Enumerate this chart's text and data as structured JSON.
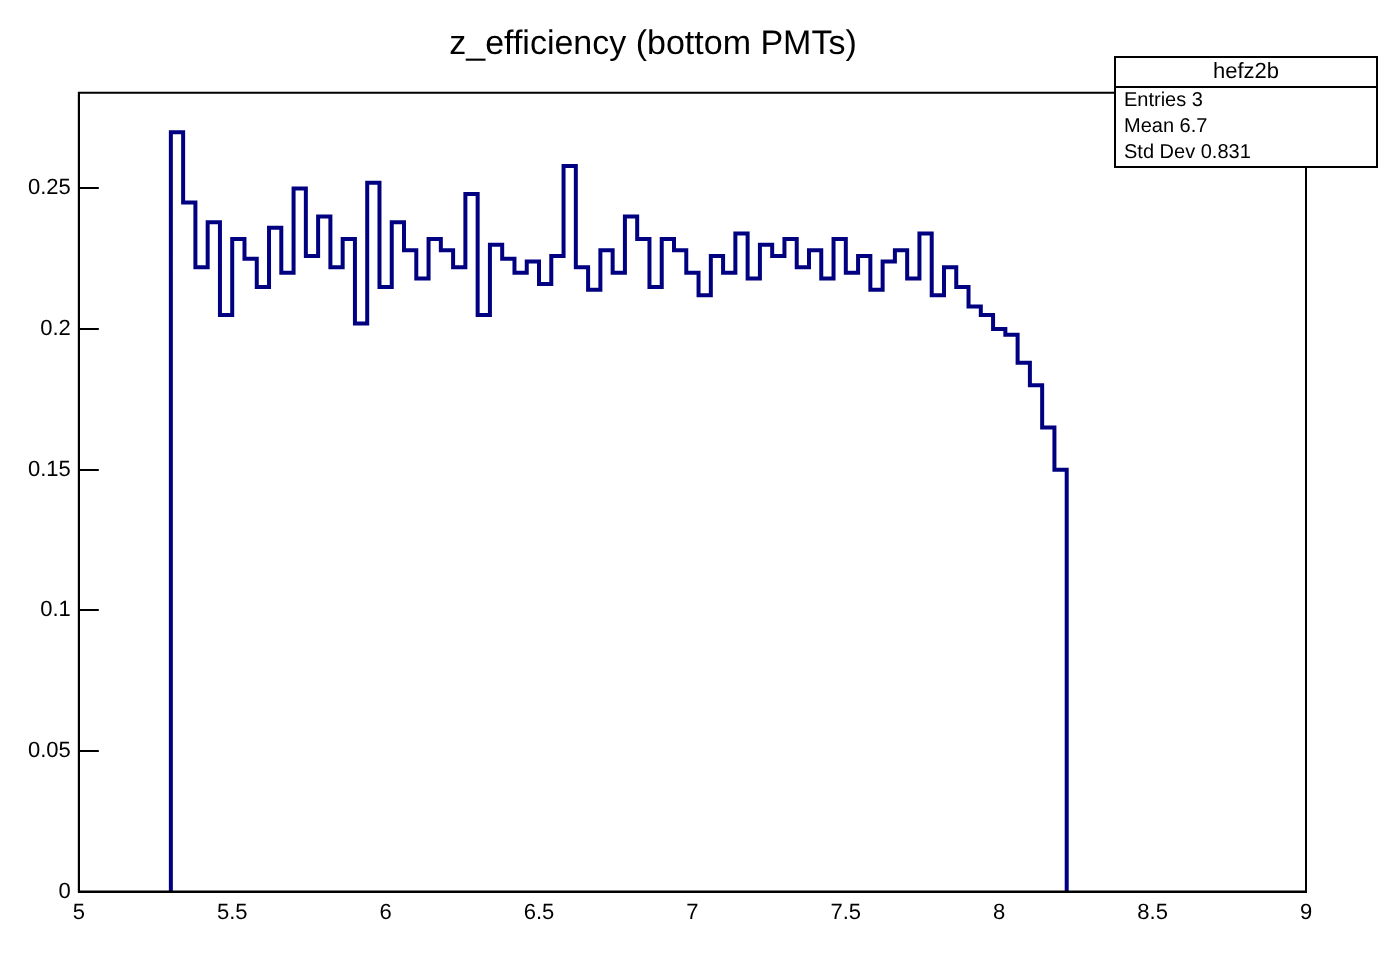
{
  "chart_data": {
    "type": "histogram",
    "title": "z_efficiency (bottom PMTs)",
    "annotations": [
      "hefz2b",
      "Entries 3",
      "Mean 6.7",
      "Std Dev 0.831"
    ],
    "bins": [
      5.3,
      5.34,
      5.38,
      5.42,
      5.46,
      5.5,
      5.54,
      5.58,
      5.62,
      5.66,
      5.7,
      5.74,
      5.78,
      5.82,
      5.86,
      5.9,
      5.94,
      5.98,
      6.02,
      6.06,
      6.1,
      6.14,
      6.18,
      6.22,
      6.26,
      6.3,
      6.34,
      6.38,
      6.42,
      6.46,
      6.5,
      6.54,
      6.58,
      6.62,
      6.66,
      6.7,
      6.74,
      6.78,
      6.82,
      6.86,
      6.9,
      6.94,
      6.98,
      7.02,
      7.06,
      7.1,
      7.14,
      7.18,
      7.22,
      7.26,
      7.3,
      7.34,
      7.38,
      7.42,
      7.46,
      7.5,
      7.54,
      7.58,
      7.62,
      7.66,
      7.7,
      7.74,
      7.78,
      7.82,
      7.86,
      7.9,
      7.94,
      7.98,
      8.02,
      8.06,
      8.1,
      8.14,
      8.18,
      8.22
    ],
    "values": [
      0.27,
      0.245,
      0.222,
      0.238,
      0.205,
      0.232,
      0.225,
      0.215,
      0.236,
      0.22,
      0.25,
      0.226,
      0.24,
      0.222,
      0.232,
      0.202,
      0.252,
      0.215,
      0.238,
      0.228,
      0.218,
      0.232,
      0.228,
      0.222,
      0.248,
      0.205,
      0.23,
      0.225,
      0.22,
      0.224,
      0.216,
      0.226,
      0.258,
      0.222,
      0.214,
      0.228,
      0.22,
      0.24,
      0.232,
      0.215,
      0.232,
      0.228,
      0.22,
      0.212,
      0.226,
      0.22,
      0.234,
      0.218,
      0.23,
      0.226,
      0.232,
      0.222,
      0.228,
      0.218,
      0.232,
      0.22,
      0.226,
      0.214,
      0.224,
      0.228,
      0.218,
      0.234,
      0.212,
      0.222,
      0.215,
      0.208,
      0.205,
      0.2,
      0.198,
      0.188,
      0.18,
      0.165,
      0.15
    ],
    "color": "#000080",
    "xlim": [
      5,
      9
    ],
    "xticks": [
      5,
      5.5,
      6,
      6.5,
      7,
      7.5,
      8,
      8.5,
      9
    ],
    "ylim": [
      0,
      0.284
    ],
    "yticks": [
      0,
      0.05,
      0.1,
      0.15,
      0.2,
      0.25
    ],
    "grid": false,
    "legend": false
  }
}
